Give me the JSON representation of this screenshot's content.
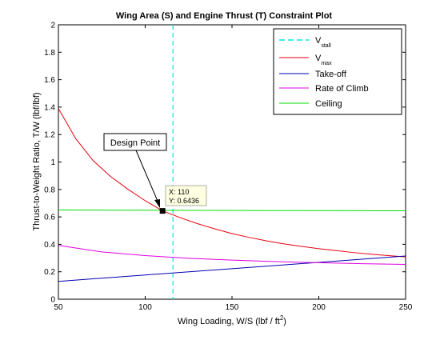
{
  "chart_data": {
    "type": "line",
    "title": "Wing Area (S) and Engine Thrust (T) Constraint Plot",
    "xlabel": "Wing Loading, W/S (lbf / ft",
    "xlabel_sup": "2",
    "xlabel_tail": ")",
    "ylabel": "Thrust-to-Weight Ratio, T/W (lbf/lbf)",
    "xlim": [
      50,
      250
    ],
    "ylim": [
      0,
      2
    ],
    "grid": false,
    "legend_position": "top-right",
    "x_ticks": [
      50,
      100,
      150,
      200,
      250
    ],
    "y_ticks": [
      0,
      0.2,
      0.4,
      0.6,
      0.8,
      1,
      1.2,
      1.4,
      1.6,
      1.8,
      2
    ],
    "x_tick_labels": [
      "50",
      "100",
      "150",
      "200",
      "250"
    ],
    "y_tick_labels": [
      "0",
      "0.2",
      "0.4",
      "0.6",
      "0.8",
      "1",
      "1.2",
      "1.4",
      "1.6",
      "1.8",
      "2"
    ],
    "series": [
      {
        "name": "V",
        "name_sub": "stall",
        "color": "#00e5ee",
        "style": "dashed",
        "kind": "vertical",
        "x": 116
      },
      {
        "name": "V",
        "name_sub": "max",
        "color": "#e8000b",
        "style": "solid",
        "x": [
          50,
          60,
          70,
          80,
          90,
          100,
          110,
          120,
          130,
          140,
          150,
          160,
          170,
          180,
          190,
          200,
          210,
          220,
          230,
          240,
          250
        ],
        "y": [
          1.39,
          1.17,
          1.01,
          0.895,
          0.802,
          0.718,
          0.644,
          0.595,
          0.551,
          0.513,
          0.478,
          0.45,
          0.425,
          0.403,
          0.385,
          0.368,
          0.354,
          0.34,
          0.328,
          0.318,
          0.308
        ]
      },
      {
        "name": "Take-off",
        "color": "#0000b0",
        "style": "solid",
        "x": [
          50,
          250
        ],
        "y": [
          0.13,
          0.315
        ]
      },
      {
        "name": "Rate of Climb",
        "color": "#e000e0",
        "style": "solid",
        "x": [
          50,
          75,
          100,
          125,
          150,
          175,
          200,
          225,
          250
        ],
        "y": [
          0.392,
          0.345,
          0.318,
          0.298,
          0.285,
          0.274,
          0.266,
          0.259,
          0.254
        ]
      },
      {
        "name": "Ceiling",
        "color": "#00dd00",
        "style": "solid",
        "x": [
          50,
          250
        ],
        "y": [
          0.65,
          0.644
        ]
      }
    ],
    "design_point": {
      "x": 110,
      "y": 0.6436
    },
    "annotations": {
      "arrow_label": "Design Point",
      "datatip_x": "X: 110",
      "datatip_y": "Y: 0.6436"
    }
  }
}
